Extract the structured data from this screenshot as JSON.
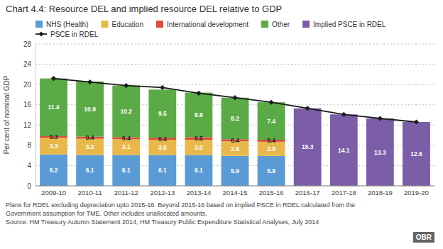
{
  "chart_data": {
    "type": "bar",
    "title": "Chart 4.4: Resource DEL and implied resource DEL relative to GDP",
    "y_label": "Per cent of nominal GDP",
    "categories": [
      "2009-10",
      "2010-11",
      "2011-12",
      "2012-13",
      "2013-14",
      "2014-15",
      "2015-16",
      "2016-17",
      "2017-18",
      "2018-19",
      "2019-20"
    ],
    "stacked": true,
    "data_labels": true,
    "grid": true,
    "legend": "top-left",
    "series": [
      {
        "name": "NHS (Health)",
        "color": "#5b9bd5",
        "values": [
          6.2,
          6.1,
          6.1,
          6.1,
          6.1,
          5.9,
          5.9,
          null,
          null,
          null,
          null
        ]
      },
      {
        "name": "Education",
        "color": "#e8b84b",
        "values": [
          3.3,
          3.2,
          3.1,
          3.0,
          3.0,
          2.9,
          2.8,
          null,
          null,
          null,
          null
        ],
        "value_labels": [
          "3.3",
          "3.2",
          "3.1",
          "3.0",
          "3.0",
          "2.9",
          "2.8",
          null,
          null,
          null,
          null
        ]
      },
      {
        "name": "International development",
        "color": "#d94f3a",
        "values": [
          0.3,
          0.4,
          0.4,
          0.4,
          0.5,
          0.4,
          0.4,
          null,
          null,
          null,
          null
        ]
      },
      {
        "name": "Other",
        "color": "#5aaa46",
        "values": [
          11.4,
          10.9,
          10.2,
          9.5,
          8.8,
          8.2,
          7.4,
          null,
          null,
          null,
          null
        ]
      },
      {
        "name": "Implied PSCE in RDEL",
        "color": "#7b5ea7",
        "values": [
          null,
          null,
          null,
          null,
          null,
          null,
          null,
          15.3,
          14.1,
          13.3,
          12.6
        ]
      },
      {
        "name": "PSCE in RDEL",
        "type": "line",
        "marker": "diamond",
        "color": "#1a1a1a",
        "values": [
          21.2,
          20.5,
          19.8,
          19.4,
          18.3,
          17.4,
          16.5,
          15.3,
          14.1,
          13.3,
          12.6
        ]
      }
    ],
    "ylim": [
      0,
      28
    ],
    "yticks": [
      0,
      4,
      8,
      12,
      16,
      20,
      24,
      28
    ],
    "footnotes": [
      "Plans for RDEL excluding depreciation upto 2015-16. Beyond 2015-16 based on implied PSCE in RDEL calculated from the",
      "Government assumption for TME. Other includes unallocated amounts.",
      "Source: HM Treasury Autumn Statement 2014, HM Treasury Public Expenditure Statistical Analyses, July 2014"
    ],
    "annotations": [
      "OBR"
    ]
  }
}
